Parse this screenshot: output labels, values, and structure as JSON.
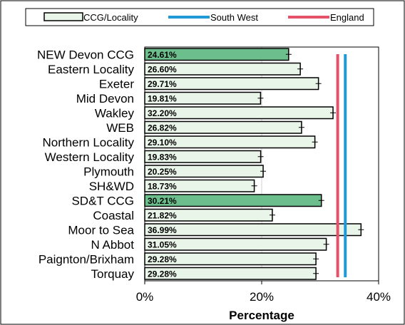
{
  "chart_data": {
    "type": "bar",
    "orientation": "horizontal",
    "categories": [
      "NEW Devon CCG",
      "Eastern Locality",
      "Exeter",
      "Mid Devon",
      "Wakley",
      "WEB",
      "Northern Locality",
      "Western Locality",
      "Plymouth",
      "SH&WD",
      "SD&T CCG",
      "Coastal",
      "Moor to Sea",
      "N Abbot",
      "Paignton/Brixham",
      "Torquay"
    ],
    "values": [
      24.61,
      26.6,
      29.71,
      19.81,
      32.2,
      26.82,
      29.1,
      19.83,
      20.25,
      18.73,
      30.21,
      21.82,
      36.99,
      31.05,
      29.28,
      29.28
    ],
    "data_labels": [
      "24.61%",
      "26.60%",
      "29.71%",
      "19.81%",
      "32.20%",
      "26.82%",
      "29.10%",
      "19.83%",
      "20.25%",
      "18.73%",
      "30.21%",
      "21.82%",
      "36.99%",
      "31.05%",
      "29.28%",
      "29.28%"
    ],
    "highlighted": [
      true,
      false,
      false,
      false,
      false,
      false,
      false,
      false,
      false,
      false,
      true,
      false,
      false,
      false,
      false,
      false
    ],
    "series": [
      {
        "name": "CCG/Locality",
        "values": [
          24.61,
          26.6,
          29.71,
          19.81,
          32.2,
          26.82,
          29.1,
          19.83,
          20.25,
          18.73,
          30.21,
          21.82,
          36.99,
          31.05,
          29.28,
          29.28
        ]
      }
    ],
    "reference_lines": [
      {
        "name": "South West",
        "value": 34.3,
        "color": "#1f9ad6"
      },
      {
        "name": "England",
        "value": 33.0,
        "color": "#e4526a"
      }
    ],
    "xlabel": "Percentage",
    "xlim": [
      0,
      40
    ],
    "xticks": [
      0,
      20,
      40
    ],
    "xtick_labels": [
      "0%",
      "20%",
      "40%"
    ],
    "grid": "vertical",
    "legend": {
      "placement": "top",
      "entries": [
        "CCG/Locality",
        "South West",
        "England"
      ]
    },
    "colors": {
      "bar_fill": "#eaf5ea",
      "bar_highlight": "#6cbf8c",
      "bar_stroke": "#000000",
      "gridline": "#d0d0d0"
    }
  }
}
